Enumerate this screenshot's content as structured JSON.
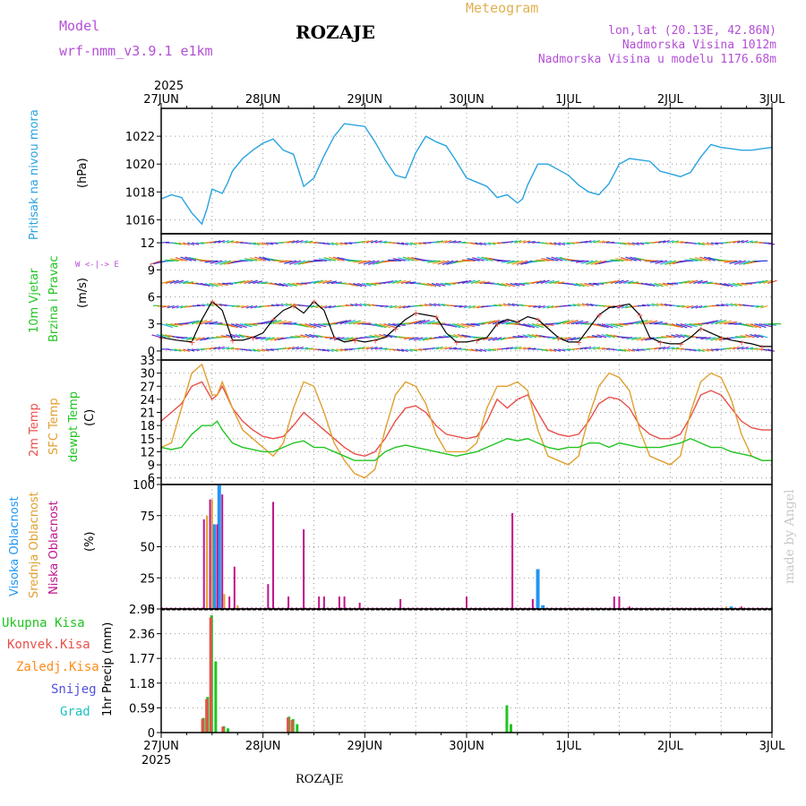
{
  "header": {
    "model_label": "Model",
    "model_name": "wrf-nmm_v3.9.1 e1km",
    "station": "ROZAJE",
    "product": "Meteogram",
    "lonlat": "lon,lat (20.13E, 42.86N)",
    "elevation": "Nadmorska Visina 1012m",
    "model_elevation": "Nadmorska Visina u modelu 1176.68m",
    "year_top": "2025",
    "year_bottom": "2025",
    "footer_station": "ROZAJE",
    "credit": "made by Angel"
  },
  "colors": {
    "pressure": "#29a3e0",
    "temp2m": "#e8504a",
    "sfc": "#e0a030",
    "dewpt": "#22c422",
    "high_cloud": "#2196f3",
    "mid_cloud": "#e0a030",
    "low_cloud": "#c0148c",
    "total_precip": "#22c422",
    "conv_precip": "#e8504a",
    "frozen": "#ff8c1a",
    "snow": "#5050e0",
    "hail": "#20c0c0",
    "purple_text": "#b44fd6"
  },
  "x_axis": {
    "dates": [
      "27JUN",
      "28JUN",
      "29JUN",
      "30JUN",
      "1JUL",
      "2JUL",
      "3JUL"
    ]
  },
  "panel_labels": {
    "pressure": {
      "title": "Pritisak na nivou mora",
      "unit": "(hPa)"
    },
    "wind": {
      "title1": "10m Vjetar",
      "title2": "Brzina i Pravac",
      "unit": "(m/s)",
      "compass": "W <-|-> E"
    },
    "temp": {
      "t2m": "2m Temp",
      "sfc": "SFC Temp",
      "dew": "dewpt Temp",
      "unit": "(C)"
    },
    "cloud": {
      "high": "Visoka Oblacnost",
      "mid": "Srednja Oblacnost",
      "low": "Niska Oblacnost",
      "unit": "(%)"
    },
    "precip": {
      "total": "Ukupna Kisa",
      "conv": "Konvek.Kisa",
      "frozen": "Zaledj.Kisa",
      "snow": "Snijeg",
      "hail": "Grad",
      "unit": "1hr Precip (mm)"
    }
  },
  "chart_data": [
    {
      "type": "line",
      "name": "pressure",
      "x_unit": "days from 27JUN 00",
      "ylim": [
        1015,
        1024
      ],
      "yticks": [
        "1016",
        "1018",
        "1020",
        "1022"
      ],
      "x": [
        0,
        0.1,
        0.2,
        0.3,
        0.4,
        0.45,
        0.5,
        0.6,
        0.65,
        0.7,
        0.8,
        0.9,
        1.0,
        1.1,
        1.2,
        1.3,
        1.4,
        1.5,
        1.6,
        1.7,
        1.8,
        1.9,
        2.0,
        2.1,
        2.2,
        2.3,
        2.4,
        2.5,
        2.6,
        2.7,
        2.8,
        2.9,
        3.0,
        3.1,
        3.2,
        3.3,
        3.4,
        3.5,
        3.55,
        3.6,
        3.7,
        3.8,
        3.9,
        4.0,
        4.1,
        4.2,
        4.3,
        4.4,
        4.5,
        4.6,
        4.7,
        4.8,
        4.9,
        5.0,
        5.1,
        5.2,
        5.3,
        5.4,
        5.5,
        5.6,
        5.7,
        5.8,
        5.9,
        6.0
      ],
      "series": [
        {
          "values": [
            1017.5,
            1017.8,
            1017.6,
            1016.5,
            1015.7,
            1016.8,
            1018.2,
            1017.9,
            1018.6,
            1019.5,
            1020.4,
            1021.0,
            1021.5,
            1021.8,
            1021.0,
            1020.7,
            1018.4,
            1019.0,
            1020.6,
            1022.0,
            1022.9,
            1022.8,
            1022.7,
            1021.6,
            1020.3,
            1019.2,
            1019.0,
            1020.8,
            1022.0,
            1021.6,
            1021.3,
            1020.2,
            1019.0,
            1018.7,
            1018.4,
            1017.6,
            1017.8,
            1017.2,
            1017.5,
            1018.5,
            1020.0,
            1020.0,
            1019.6,
            1019.2,
            1018.5,
            1018.0,
            1017.8,
            1018.6,
            1020.0,
            1020.4,
            1020.3,
            1020.2,
            1019.5,
            1019.3,
            1019.1,
            1019.4,
            1020.5,
            1021.4,
            1021.2,
            1021.1,
            1021.0,
            1021.0,
            1021.1,
            1021.2
          ]
        }
      ]
    },
    {
      "type": "line",
      "name": "wind_speed",
      "x_unit": "days from 27JUN 00",
      "ylim": [
        -1,
        13
      ],
      "yticks": [
        "0",
        "3",
        "6",
        "9",
        "12"
      ],
      "x": [
        0,
        0.15,
        0.3,
        0.4,
        0.5,
        0.6,
        0.7,
        0.8,
        0.9,
        1.0,
        1.1,
        1.2,
        1.3,
        1.4,
        1.5,
        1.6,
        1.7,
        1.8,
        1.9,
        2.0,
        2.1,
        2.2,
        2.3,
        2.4,
        2.5,
        2.6,
        2.7,
        2.8,
        2.9,
        3.0,
        3.1,
        3.2,
        3.3,
        3.4,
        3.5,
        3.6,
        3.7,
        3.8,
        3.9,
        4.0,
        4.1,
        4.2,
        4.3,
        4.4,
        4.5,
        4.6,
        4.7,
        4.8,
        4.9,
        5.0,
        5.1,
        5.2,
        5.3,
        5.4,
        5.5,
        5.6,
        5.7,
        5.8,
        5.9,
        6.0
      ],
      "series": [
        {
          "values": [
            1.5,
            1.2,
            1.0,
            3.5,
            5.5,
            4.5,
            1.2,
            1.2,
            1.5,
            2.0,
            3.5,
            4.5,
            5.0,
            4.2,
            5.5,
            4.5,
            1.5,
            1.0,
            1.2,
            1.0,
            1.2,
            1.5,
            2.5,
            3.5,
            4.2,
            4.0,
            3.8,
            2.0,
            1.0,
            1.0,
            1.2,
            1.5,
            3.0,
            3.5,
            3.2,
            3.8,
            3.5,
            2.5,
            1.5,
            1.0,
            1.0,
            2.5,
            4.0,
            4.8,
            5.0,
            5.2,
            4.0,
            1.5,
            1.0,
            0.8,
            0.8,
            1.5,
            2.5,
            2.0,
            1.5,
            1.2,
            1.0,
            0.8,
            0.5,
            0.5
          ]
        }
      ]
    },
    {
      "type": "line",
      "name": "temperatures",
      "x_unit": "days from 27JUN 00",
      "ylim": [
        4.5,
        33
      ],
      "yticks": [
        "6",
        "9",
        "12",
        "15",
        "18",
        "21",
        "24",
        "27",
        "30",
        "33"
      ],
      "x": [
        0,
        0.1,
        0.2,
        0.3,
        0.4,
        0.5,
        0.55,
        0.6,
        0.7,
        0.8,
        0.9,
        1.0,
        1.1,
        1.2,
        1.3,
        1.4,
        1.5,
        1.6,
        1.7,
        1.8,
        1.9,
        2.0,
        2.1,
        2.2,
        2.3,
        2.4,
        2.5,
        2.6,
        2.7,
        2.8,
        2.9,
        3.0,
        3.1,
        3.2,
        3.3,
        3.4,
        3.5,
        3.6,
        3.7,
        3.8,
        3.9,
        4.0,
        4.1,
        4.2,
        4.3,
        4.4,
        4.5,
        4.6,
        4.7,
        4.8,
        4.9,
        5.0,
        5.1,
        5.2,
        5.3,
        5.4,
        5.5,
        5.6,
        5.7,
        5.8,
        5.9,
        6.0
      ],
      "series": [
        {
          "name": "2m Temp",
          "values": [
            19,
            21,
            23,
            27,
            28,
            24,
            25,
            27,
            22,
            19,
            17,
            15.5,
            15,
            15.5,
            18,
            21,
            19,
            17,
            15,
            13,
            11.5,
            11,
            12,
            15,
            19,
            22,
            22.5,
            21,
            18,
            16,
            15.5,
            15,
            15.5,
            19,
            24,
            22,
            24,
            25,
            21,
            17,
            16,
            15.5,
            16,
            19,
            23,
            24.5,
            24,
            22,
            18,
            16,
            15,
            15,
            16,
            20,
            25,
            26,
            25,
            22,
            19,
            17.5,
            17,
            17
          ]
        },
        {
          "name": "SFC Temp",
          "values": [
            13,
            14,
            22,
            30,
            32,
            25,
            25,
            28,
            22,
            17,
            15,
            13,
            11,
            14,
            22,
            28,
            27,
            21,
            14,
            10,
            7,
            6,
            8,
            17,
            25,
            28,
            27,
            23,
            16,
            12,
            12,
            12,
            14,
            22,
            27,
            27,
            28,
            26,
            17,
            11,
            10,
            9,
            11,
            20,
            27,
            30,
            29,
            26,
            17,
            11,
            10,
            9,
            11,
            21,
            28,
            30,
            29,
            24,
            16,
            11,
            10,
            10
          ]
        },
        {
          "name": "dewpt Temp",
          "values": [
            13,
            12.5,
            13,
            16,
            18,
            18,
            19,
            17,
            14,
            13,
            12.5,
            12,
            12,
            13,
            14,
            14.5,
            13,
            13,
            12,
            11,
            10,
            10,
            10,
            12,
            13,
            13.5,
            13,
            12.5,
            12,
            11.5,
            11,
            11.5,
            12,
            13,
            14,
            15,
            14.5,
            15,
            14,
            13,
            12.5,
            13,
            13,
            14,
            14,
            13,
            14,
            13.5,
            13,
            13,
            13,
            13.5,
            14,
            15,
            14,
            13,
            13,
            12,
            11.5,
            11,
            10,
            10
          ]
        }
      ]
    },
    {
      "type": "bar",
      "name": "cloud_cover",
      "x_unit": "days from 27JUN 00",
      "ylim": [
        0,
        100
      ],
      "yticks": [
        "0",
        "25",
        "50",
        "75",
        "100"
      ],
      "series": [
        {
          "name": "Visoka Oblacnost",
          "points": [
            [
              0.52,
              68
            ],
            [
              0.57,
              100
            ],
            [
              3.7,
              32
            ],
            [
              3.75,
              3
            ],
            [
              5.6,
              2
            ]
          ]
        },
        {
          "name": "Srednja Oblacnost",
          "points": [
            [
              0.45,
              75
            ],
            [
              0.5,
              88
            ],
            [
              0.62,
              12
            ],
            [
              0.75,
              3
            ],
            [
              5.55,
              2
            ]
          ]
        },
        {
          "name": "Niska Oblacnost",
          "points": [
            [
              0.42,
              72
            ],
            [
              0.48,
              88
            ],
            [
              0.55,
              68
            ],
            [
              0.6,
              92
            ],
            [
              0.67,
              10
            ],
            [
              0.72,
              34
            ],
            [
              1.05,
              20
            ],
            [
              1.1,
              86
            ],
            [
              1.25,
              10
            ],
            [
              1.4,
              64
            ],
            [
              1.55,
              10
            ],
            [
              1.6,
              10
            ],
            [
              1.75,
              10
            ],
            [
              1.8,
              10
            ],
            [
              1.95,
              5
            ],
            [
              2.35,
              8
            ],
            [
              3.0,
              10
            ],
            [
              3.45,
              77
            ],
            [
              3.65,
              8
            ],
            [
              4.45,
              10
            ],
            [
              4.5,
              10
            ],
            [
              4.6,
              2
            ],
            [
              5.7,
              2
            ]
          ]
        }
      ]
    },
    {
      "type": "bar",
      "name": "precipitation",
      "x_unit": "days from 27JUN 00",
      "ylim": [
        0,
        2.95
      ],
      "yticks": [
        "0",
        "0.59",
        "1.18",
        "1.77",
        "2.36",
        "2.95"
      ],
      "series": [
        {
          "name": "Ukupna Kisa",
          "points": [
            [
              0.42,
              0.35
            ],
            [
              0.46,
              0.85
            ],
            [
              0.5,
              2.8
            ],
            [
              0.54,
              1.7
            ],
            [
              0.62,
              0.15
            ],
            [
              0.66,
              0.1
            ],
            [
              1.26,
              0.38
            ],
            [
              1.3,
              0.32
            ],
            [
              1.34,
              0.2
            ],
            [
              3.4,
              0.65
            ],
            [
              3.44,
              0.2
            ]
          ]
        },
        {
          "name": "Konvek.Kisa",
          "points": [
            [
              0.41,
              0.33
            ],
            [
              0.45,
              0.8
            ],
            [
              0.49,
              2.75
            ],
            [
              0.61,
              0.14
            ],
            [
              1.25,
              0.36
            ],
            [
              1.29,
              0.3
            ]
          ]
        }
      ]
    }
  ]
}
